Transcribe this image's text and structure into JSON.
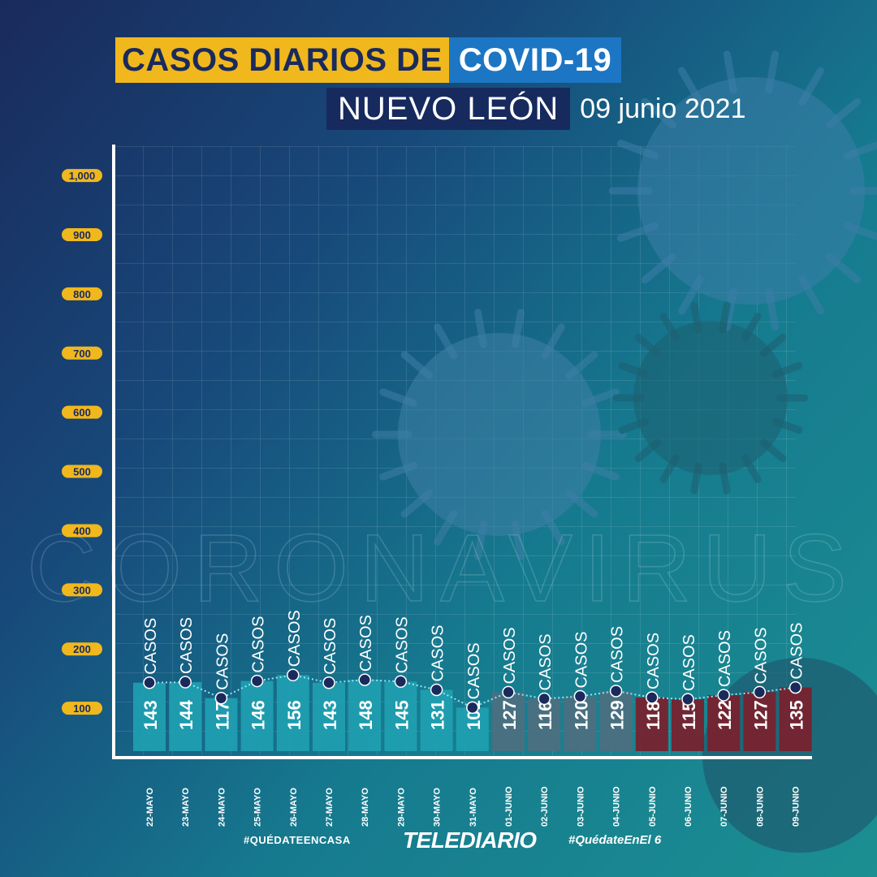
{
  "header": {
    "title_part1": "CASOS DIARIOS DE",
    "title_part2": "COVID-19",
    "location": "NUEVO LEÓN",
    "date": "09 junio 2021"
  },
  "watermark": "CORONAVIRUS",
  "footer": {
    "hashtag_left": "#QUÉDATEENCASA",
    "brand": "TELEDIARIO",
    "hashtag_right": "#QuédateEnEl 6"
  },
  "colors": {
    "title_yellow": "#f0b81d",
    "title_blue": "#1c76c4",
    "title_navy": "#172a5e",
    "tick_badge": "#f0b81d",
    "bar_teal": "#1f9fb1",
    "bar_slate": "#4d6f80",
    "bar_maroon": "#7a1f2c",
    "point_marker": "#1a2a5c"
  },
  "chart_data": {
    "type": "bar",
    "categories": [
      "22-MAYO",
      "23-MAYO",
      "24-MAYO",
      "25-MAYO",
      "26-MAYO",
      "27-MAYO",
      "28-MAYO",
      "29-MAYO",
      "30-MAYO",
      "31-MAYO",
      "01-JUNIO",
      "02-JUNIO",
      "03-JUNIO",
      "04-JUNIO",
      "05-JUNIO",
      "06-JUNIO",
      "07-JUNIO",
      "08-JUNIO",
      "09-JUNIO"
    ],
    "values": [
      143,
      144,
      117,
      146,
      156,
      143,
      148,
      145,
      131,
      101,
      127,
      116,
      120,
      129,
      118,
      115,
      122,
      127,
      135
    ],
    "value_suffix": "CASOS",
    "yticks": [
      100,
      200,
      300,
      400,
      500,
      600,
      700,
      800,
      900,
      1000
    ],
    "ytick_labels": [
      "100",
      "200",
      "300",
      "400",
      "500",
      "600",
      "700",
      "800",
      "900",
      "1,000"
    ],
    "ylim": [
      0,
      1050
    ],
    "xlabel": "",
    "ylabel": "",
    "overlay_line": "dotted trend line with point markers",
    "grid": true
  }
}
